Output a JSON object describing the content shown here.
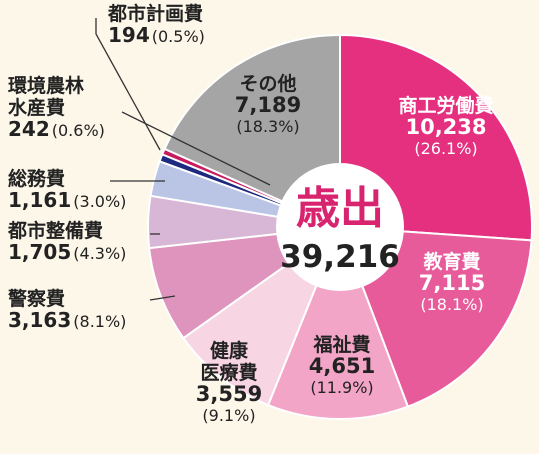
{
  "chart_data": {
    "type": "pie",
    "total_label": "歳出",
    "total_value": "39,216",
    "slices": [
      {
        "name": "商工労働費",
        "value_text": "10,238",
        "value": 10238,
        "pct": "(26.1%)",
        "color": "#e4307f"
      },
      {
        "name": "教育費",
        "value_text": "7,115",
        "value": 7115,
        "pct": "(18.1%)",
        "color": "#e85b9a"
      },
      {
        "name": "福祉費",
        "value_text": "4,651",
        "value": 4651,
        "pct": "(11.9%)",
        "color": "#f2a5c6"
      },
      {
        "name": "健康医療費",
        "value_text": "3,559",
        "value": 3559,
        "pct": "(9.1%)",
        "color": "#f8d5e3"
      },
      {
        "name": "警察費",
        "value_text": "3,163",
        "value": 3163,
        "pct": "(8.1%)",
        "color": "#de94bd"
      },
      {
        "name": "都市整備費",
        "value_text": "1,705",
        "value": 1705,
        "pct": "(4.3%)",
        "color": "#d8b6d6"
      },
      {
        "name": "総務費",
        "value_text": "1,161",
        "value": 1161,
        "pct": "(3.0%)",
        "color": "#bac5e6"
      },
      {
        "name": "環境農林水産費",
        "value_text": "242",
        "value": 242,
        "pct": "(0.6%)",
        "color": "#1e2a80"
      },
      {
        "name": "都市計画費",
        "value_text": "194",
        "value": 194,
        "pct": "(0.5%)",
        "color": "#c71b5d"
      },
      {
        "name": "その他",
        "value_text": "7,189",
        "value": 7189,
        "pct": "(18.3%)",
        "color": "#a5a5a5"
      }
    ]
  }
}
